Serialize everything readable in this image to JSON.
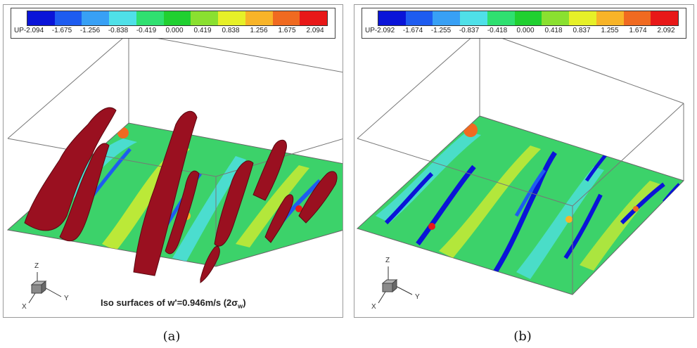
{
  "panels": [
    {
      "caption": "(a)",
      "colorbar": {
        "variable": "UP",
        "ticks": [
          "-2.094",
          "-1.675",
          "-1.256",
          "-0.838",
          "-0.419",
          "0.000",
          "0.419",
          "0.838",
          "1.256",
          "1.675",
          "2.094"
        ]
      },
      "axes": {
        "z": "Z",
        "y": "Y",
        "x": "X"
      },
      "annotation_main": "Iso surfaces of w'=0.946m/s (2σ",
      "annotation_sub": "w",
      "annotation_end": ")"
    },
    {
      "caption": "(b)",
      "colorbar": {
        "variable": "UP",
        "ticks": [
          "-2.092",
          "-1.674",
          "-1.255",
          "-0.837",
          "-0.418",
          "0.000",
          "0.418",
          "0.837",
          "1.255",
          "1.674",
          "2.092"
        ]
      },
      "axes": {
        "z": "Z",
        "y": "Y",
        "x": "X"
      }
    }
  ],
  "colorbar_colors": [
    "#0a14d8",
    "#1e5cf0",
    "#38a0f5",
    "#4fe0e8",
    "#2fe070",
    "#20d030",
    "#8ae030",
    "#e6f028",
    "#f8b428",
    "#f06a20",
    "#e81818"
  ],
  "iso_color": "#9a1020"
}
